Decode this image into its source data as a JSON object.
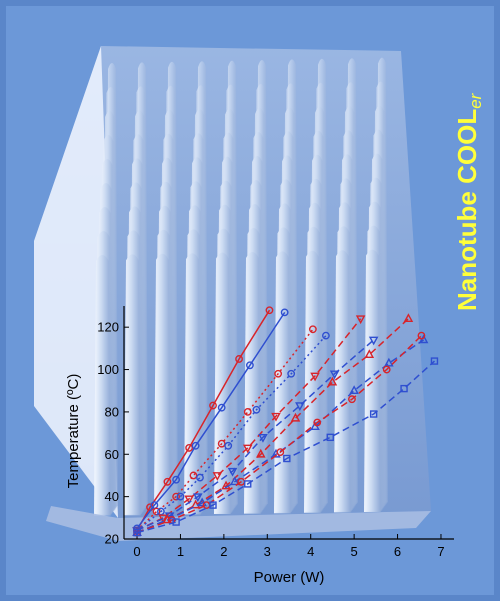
{
  "brand": {
    "main": "Nanotube COOL",
    "suffix": "er",
    "color": "#ffff3a"
  },
  "chart_data": {
    "type": "line",
    "title": "",
    "xlabel": "Power (W)",
    "ylabel": "Temperature (ºC)",
    "xlim": [
      -0.3,
      7.3
    ],
    "ylim": [
      20,
      130
    ],
    "x_ticks": [
      0,
      1,
      2,
      3,
      4,
      5,
      6,
      7
    ],
    "y_ticks": [
      20,
      40,
      60,
      80,
      100,
      120
    ],
    "x_tick_labels": [
      "0",
      "1",
      "2",
      "3",
      "4",
      "5",
      "6",
      "7"
    ],
    "y_tick_labels": [
      "20",
      "40",
      "60",
      "80",
      "100",
      "120"
    ],
    "grid": false,
    "series": [
      {
        "color": "#d8242a",
        "style": "solid",
        "marker": "circle",
        "points": [
          [
            0,
            24
          ],
          [
            0.3,
            35
          ],
          [
            0.7,
            47
          ],
          [
            1.2,
            63
          ],
          [
            1.75,
            83
          ],
          [
            2.35,
            105
          ],
          [
            3.05,
            128
          ]
        ]
      },
      {
        "color": "#2f4fd0",
        "style": "solid",
        "marker": "circle",
        "points": [
          [
            0,
            25
          ],
          [
            0.4,
            36
          ],
          [
            0.9,
            48
          ],
          [
            1.35,
            64
          ],
          [
            1.95,
            82
          ],
          [
            2.6,
            102
          ],
          [
            3.4,
            127
          ]
        ]
      },
      {
        "color": "#d8242a",
        "style": "dotted",
        "marker": "circle",
        "points": [
          [
            0,
            24
          ],
          [
            0.45,
            33
          ],
          [
            0.9,
            40
          ],
          [
            1.3,
            50
          ],
          [
            1.95,
            65
          ],
          [
            2.55,
            80
          ],
          [
            3.25,
            98
          ],
          [
            4.05,
            119
          ]
        ]
      },
      {
        "color": "#2f4fd0",
        "style": "dotted",
        "marker": "circle",
        "points": [
          [
            0,
            24
          ],
          [
            0.55,
            33
          ],
          [
            1.0,
            40
          ],
          [
            1.45,
            49
          ],
          [
            2.1,
            64
          ],
          [
            2.75,
            81
          ],
          [
            3.55,
            98
          ],
          [
            4.35,
            116
          ]
        ]
      },
      {
        "color": "#d8242a",
        "style": "dashed",
        "marker": "triangle-down",
        "points": [
          [
            0,
            24
          ],
          [
            0.6,
            30
          ],
          [
            1.2,
            39
          ],
          [
            1.85,
            50
          ],
          [
            2.55,
            63
          ],
          [
            3.2,
            78
          ],
          [
            4.1,
            97
          ],
          [
            5.15,
            124
          ]
        ]
      },
      {
        "color": "#2f4fd0",
        "style": "dashed",
        "marker": "triangle-down",
        "points": [
          [
            0,
            24
          ],
          [
            0.75,
            31
          ],
          [
            1.4,
            40
          ],
          [
            2.2,
            52
          ],
          [
            2.9,
            68
          ],
          [
            3.75,
            83
          ],
          [
            4.55,
            98
          ],
          [
            5.45,
            114
          ]
        ]
      },
      {
        "color": "#d8242a",
        "style": "dashed",
        "marker": "triangle-up",
        "points": [
          [
            0,
            23
          ],
          [
            0.7,
            29
          ],
          [
            1.35,
            36
          ],
          [
            2.05,
            45
          ],
          [
            2.85,
            60
          ],
          [
            3.65,
            77
          ],
          [
            4.5,
            94
          ],
          [
            5.35,
            107
          ],
          [
            6.25,
            124
          ]
        ]
      },
      {
        "color": "#2f4fd0",
        "style": "dashed",
        "marker": "triangle-up",
        "points": [
          [
            0,
            23
          ],
          [
            0.8,
            30
          ],
          [
            1.5,
            37
          ],
          [
            2.25,
            47
          ],
          [
            3.2,
            60
          ],
          [
            4.1,
            73
          ],
          [
            5.0,
            90
          ],
          [
            5.8,
            103
          ],
          [
            6.6,
            114
          ]
        ]
      },
      {
        "color": "#d8242a",
        "style": "dashed",
        "marker": "circle",
        "points": [
          [
            0,
            23
          ],
          [
            0.8,
            29
          ],
          [
            1.6,
            36
          ],
          [
            2.4,
            47
          ],
          [
            3.3,
            61
          ],
          [
            4.15,
            75
          ],
          [
            4.95,
            86
          ],
          [
            5.75,
            100
          ],
          [
            6.55,
            116
          ]
        ]
      },
      {
        "color": "#2f4fd0",
        "style": "dashed",
        "marker": "square",
        "points": [
          [
            0,
            23
          ],
          [
            0.9,
            28
          ],
          [
            1.75,
            36
          ],
          [
            2.55,
            46
          ],
          [
            3.45,
            58
          ],
          [
            4.45,
            68
          ],
          [
            5.45,
            79
          ],
          [
            6.15,
            91
          ],
          [
            6.85,
            104
          ]
        ]
      }
    ]
  }
}
